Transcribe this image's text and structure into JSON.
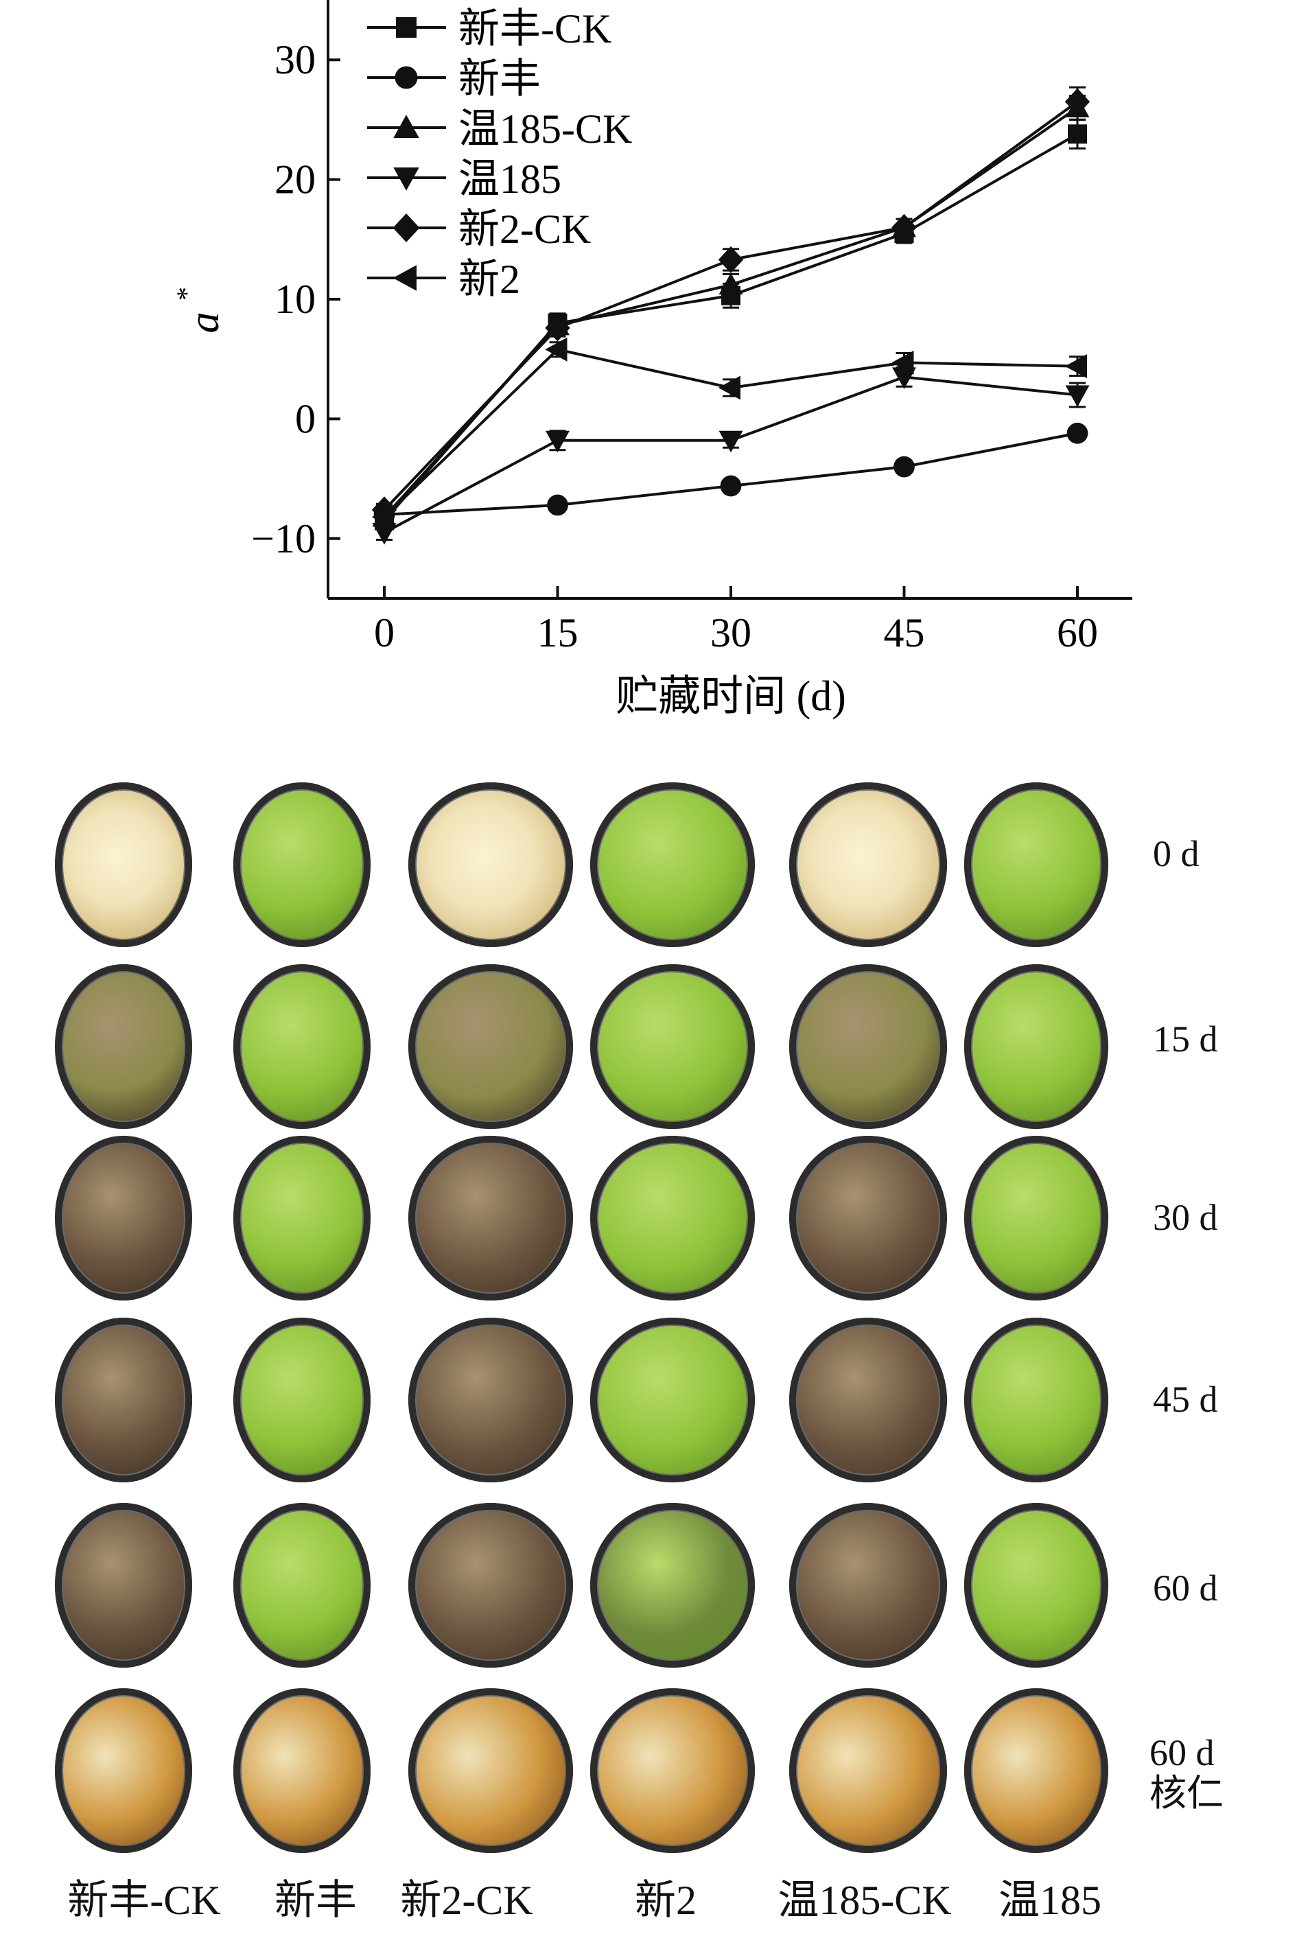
{
  "chart_data": {
    "type": "line",
    "xlabel": "贮藏时间 (d)",
    "ylabel": "a*",
    "x": [
      0,
      15,
      30,
      45,
      60
    ],
    "xlim": [
      -8,
      108
    ],
    "ylim": [
      -15,
      35
    ],
    "yticks": [
      -10,
      0,
      10,
      20,
      30
    ],
    "ytick_labels": [
      "−10",
      "0",
      "10",
      "20",
      "30"
    ],
    "xticks": [
      0,
      15,
      30,
      45,
      60
    ],
    "legend_position": "top-left",
    "series": [
      {
        "name": "新丰-CK",
        "marker": "square",
        "values": [
          -8.5,
          8.0,
          10.3,
          15.5,
          23.8
        ],
        "err": [
          0.6,
          0.8,
          1.0,
          0.8,
          1.2
        ]
      },
      {
        "name": "新丰",
        "marker": "circle",
        "values": [
          -8.0,
          -7.2,
          -5.6,
          -4.0,
          -1.2
        ],
        "err": [
          0.4,
          0.4,
          0.4,
          0.4,
          0.4
        ]
      },
      {
        "name": "温185-CK",
        "marker": "triangle-up",
        "values": [
          -8.2,
          7.8,
          11.2,
          16.0,
          26.0
        ],
        "err": [
          0.5,
          0.8,
          0.9,
          0.7,
          1.0
        ]
      },
      {
        "name": "温185",
        "marker": "triangle-down",
        "values": [
          -9.5,
          -1.8,
          -1.8,
          3.5,
          2.0
        ],
        "err": [
          0.6,
          0.8,
          0.6,
          0.8,
          1.0
        ]
      },
      {
        "name": "新2-CK",
        "marker": "diamond",
        "values": [
          -7.6,
          7.6,
          13.3,
          16.0,
          26.5
        ],
        "err": [
          0.5,
          0.7,
          0.9,
          0.7,
          1.2
        ]
      },
      {
        "name": "新2",
        "marker": "triangle-left",
        "values": [
          -8.2,
          5.8,
          2.6,
          4.7,
          4.4
        ],
        "err": [
          0.5,
          0.6,
          0.7,
          0.8,
          0.8
        ]
      }
    ]
  },
  "photo_panel": {
    "row_labels": [
      "0 d",
      "15 d",
      "30 d",
      "45 d",
      "60 d",
      "60 d\n核仁"
    ],
    "column_labels": [
      "新丰-CK",
      "新丰",
      "新2-CK",
      "新2",
      "温185-CK",
      "温185"
    ]
  },
  "colors": {
    "line": "#111111",
    "green_fruit": "#8fc33a",
    "brown_fruit": "#6b5540",
    "kernel_light": "#f0e3b8",
    "kernel_dark": "#d09740"
  }
}
